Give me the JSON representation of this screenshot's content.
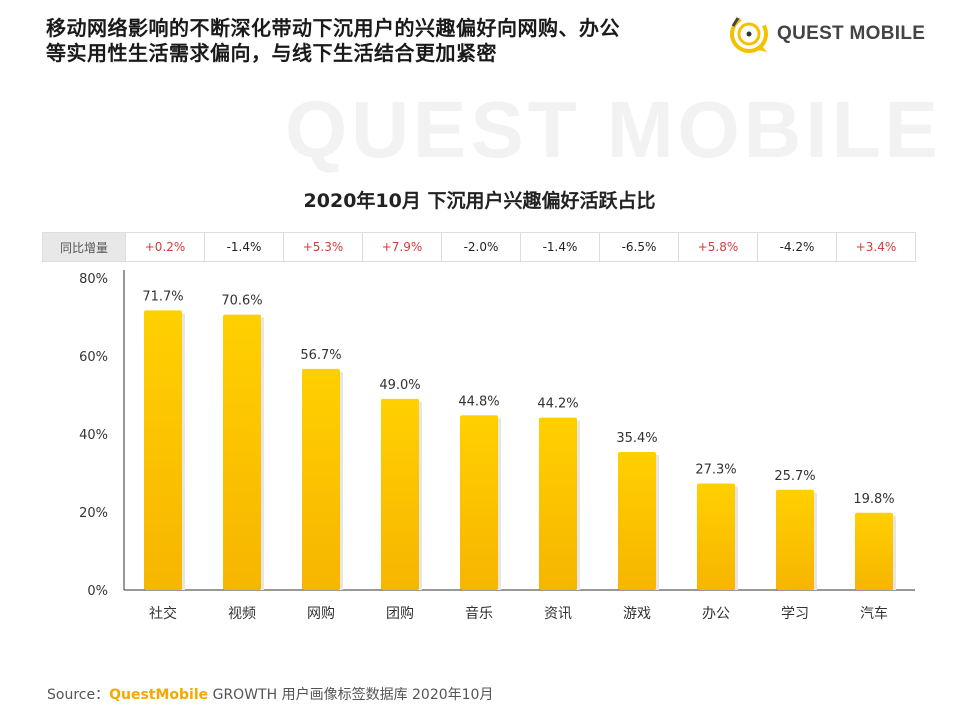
{
  "headline": [
    "移动网络影响的不断深化带动下沉用户的兴趣偏好向网购、办公",
    "等实用性生活需求偏向，与线下生活结合更加紧密"
  ],
  "logo": {
    "text": "QUEST MOBILE",
    "icon": "quest-mobile-logo-icon"
  },
  "watermark": "QUEST MOBILE",
  "yoy": {
    "label": "同比增量",
    "values": [
      "+0.2%",
      "-1.4%",
      "+5.3%",
      "+7.9%",
      "-2.0%",
      "-1.4%",
      "-6.5%",
      "+5.8%",
      "-4.2%",
      "+3.4%"
    ]
  },
  "colors": {
    "bar_top": "#FFD000",
    "bar_bottom": "#F7B500",
    "up": "#d83a3a",
    "brand": "#f5a800"
  },
  "source": {
    "prefix": "Source：",
    "brand": "QuestMobile",
    "rest": " GROWTH 用户画像标签数据库 2020年10月"
  },
  "chart_data": {
    "type": "bar",
    "title": "2020年10月 下沉用户兴趣偏好活跃占比",
    "categories": [
      "社交",
      "视频",
      "网购",
      "团购",
      "音乐",
      "资讯",
      "游戏",
      "办公",
      "学习",
      "汽车"
    ],
    "values": [
      71.7,
      70.6,
      56.7,
      49.0,
      44.8,
      44.2,
      35.4,
      27.3,
      25.7,
      19.8
    ],
    "value_labels": [
      "71.7%",
      "70.6%",
      "56.7%",
      "49.0%",
      "44.8%",
      "44.2%",
      "35.4%",
      "27.3%",
      "25.7%",
      "19.8%"
    ],
    "ylim": [
      0,
      80
    ],
    "yticks": [
      0,
      20,
      40,
      60,
      80
    ],
    "ytick_labels": [
      "0%",
      "20%",
      "40%",
      "60%",
      "80%"
    ],
    "xlabel": "",
    "ylabel": "",
    "grid": false,
    "legend": "none"
  }
}
